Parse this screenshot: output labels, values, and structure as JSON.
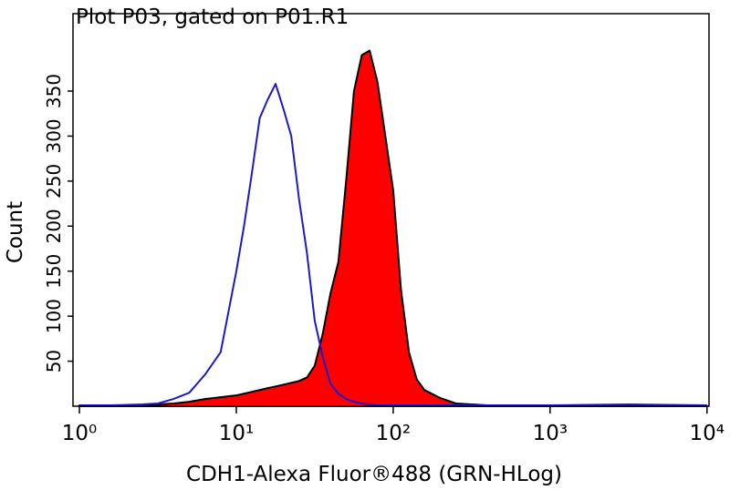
{
  "chart_data": {
    "type": "histogram-overlay",
    "title": "Plot P03, gated on P01.R1",
    "x_label": "CDH1-Alexa Fluor®488 (GRN-HLog)",
    "y_label": "Count",
    "x_scale": "log",
    "xlim": [
      0.91,
      10300
    ],
    "ylim": [
      0,
      436
    ],
    "xticks": [
      {
        "value": 1,
        "label": "10⁰"
      },
      {
        "value": 10,
        "label": "10¹"
      },
      {
        "value": 100,
        "label": "10²"
      },
      {
        "value": 1000,
        "label": "10³"
      },
      {
        "value": 10000,
        "label": "10⁴"
      }
    ],
    "yticks": [
      50,
      100,
      150,
      200,
      250,
      300,
      350
    ],
    "x": [
      1,
      1.58,
      2.51,
      3.16,
      3.98,
      5.01,
      6.31,
      7.94,
      10,
      11.2,
      12.6,
      14.1,
      15.8,
      17.8,
      20,
      22.4,
      25.1,
      28.2,
      31.6,
      35.5,
      39.8,
      44.7,
      50.1,
      56.2,
      63.1,
      70.8,
      79.4,
      89.1,
      100,
      112,
      126,
      141,
      158,
      200,
      251,
      398,
      1000,
      3162,
      10000
    ],
    "series": [
      {
        "color": "#ff0000",
        "outline": "#000000",
        "filled": true,
        "values": [
          1,
          0,
          1,
          2,
          3,
          5,
          8,
          10,
          12,
          14,
          16,
          18,
          20,
          22,
          24,
          26,
          28,
          32,
          45,
          80,
          125,
          160,
          250,
          350,
          390,
          395,
          360,
          300,
          240,
          130,
          60,
          30,
          18,
          9,
          3,
          1,
          0,
          0,
          0
        ]
      },
      {
        "color": "#1a1acc",
        "filled": false,
        "values": [
          1,
          1,
          2,
          3,
          8,
          15,
          35,
          60,
          150,
          200,
          260,
          320,
          340,
          358,
          330,
          300,
          230,
          170,
          95,
          55,
          25,
          14,
          8,
          5,
          3,
          2,
          1,
          1,
          1,
          1,
          1,
          1,
          1,
          1,
          1,
          1,
          1,
          2,
          1
        ]
      }
    ]
  }
}
